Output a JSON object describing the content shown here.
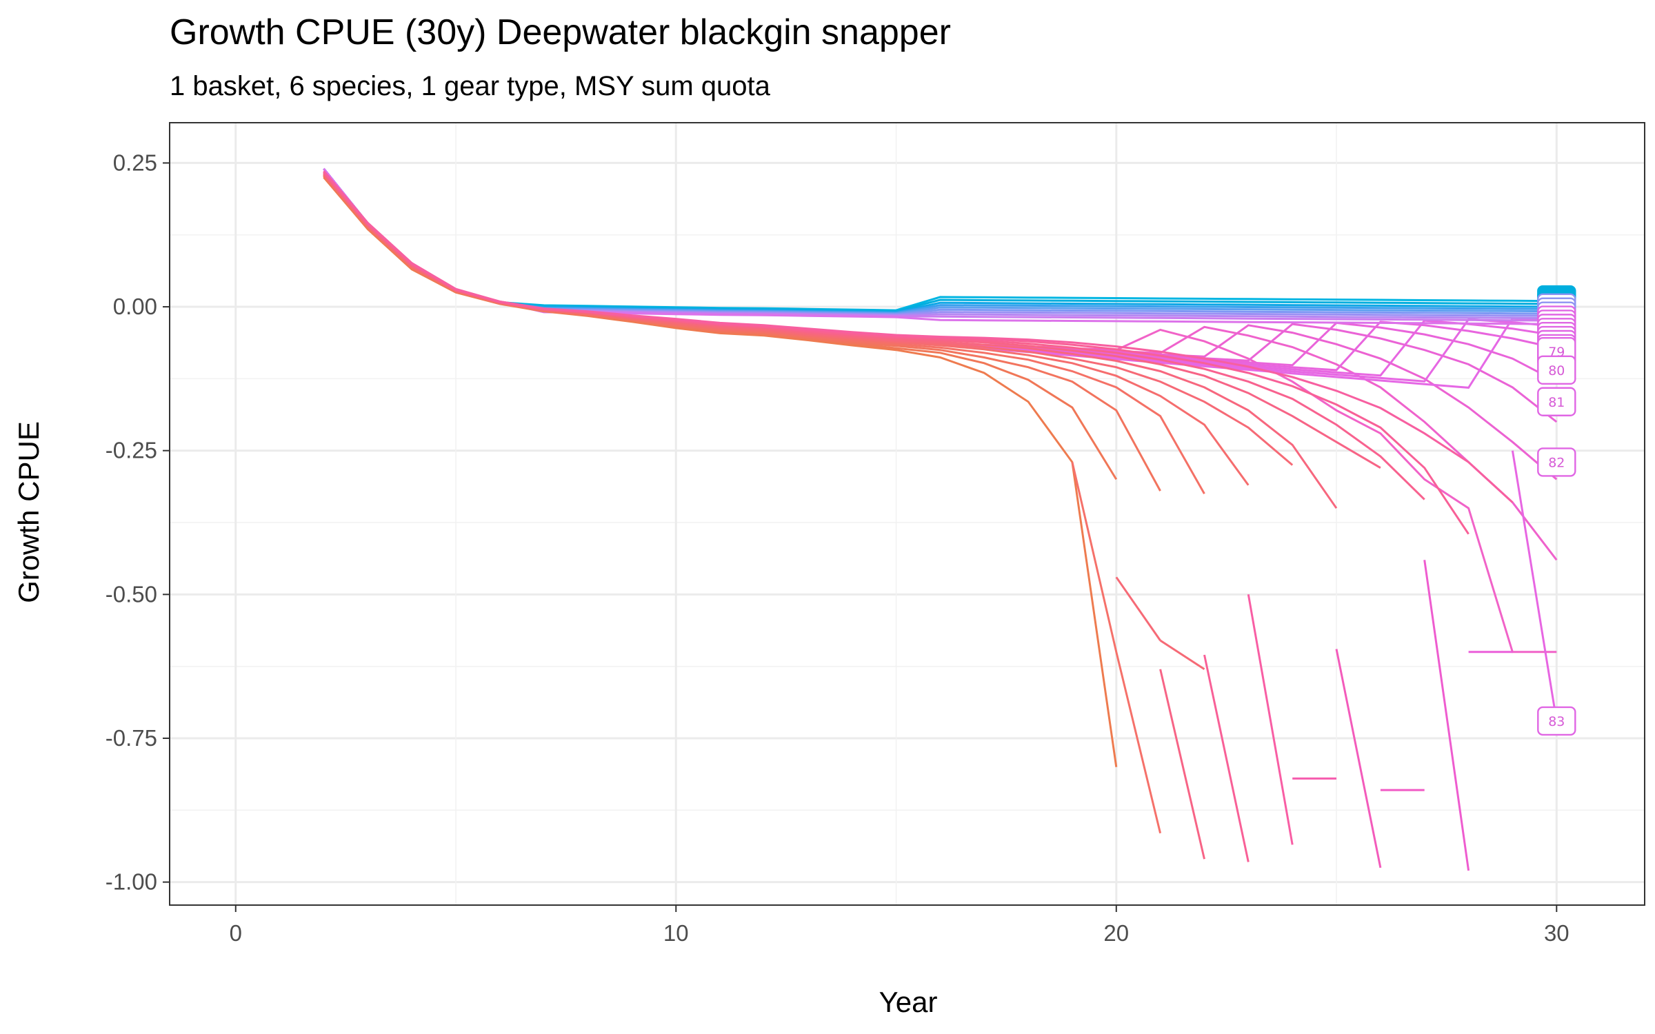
{
  "chart_data": {
    "type": "line",
    "title": "Growth CPUE (30y) Deepwater blackgin snapper",
    "subtitle": "1 basket, 6 species, 1 gear type, MSY sum quota",
    "xlabel": "Year",
    "ylabel": "Growth CPUE",
    "xlim": [
      -1.5,
      32
    ],
    "ylim": [
      -1.04,
      0.32
    ],
    "x_ticks": [
      0,
      10,
      20,
      30
    ],
    "x_tick_labels": [
      "0",
      "10",
      "20",
      "30"
    ],
    "y_ticks": [
      0.25,
      0.0,
      -0.25,
      -0.5,
      -0.75,
      -1.0
    ],
    "y_tick_labels": [
      "0.25",
      "0.00",
      "-0.25",
      "-0.50",
      "-0.75",
      "-1.00"
    ],
    "grid": true,
    "legend": "none",
    "colors": {
      "early_failure": "#ee7b4f",
      "late_failure": "#e868e6",
      "survivor": "#00aede",
      "survivor_2": "#5c9ff0"
    },
    "base_curve": {
      "x": [
        2,
        3,
        4,
        5,
        6,
        7,
        8,
        9,
        10,
        11,
        12,
        13,
        14,
        15
      ],
      "y": [
        0.24,
        0.145,
        0.075,
        0.03,
        0.008,
        -0.003,
        -0.01,
        -0.017,
        -0.025,
        -0.033,
        -0.038,
        -0.045,
        -0.052,
        -0.06
      ]
    },
    "series": [
      {
        "x": [
          2,
          3,
          4,
          5,
          6,
          7,
          8,
          9,
          10,
          11,
          12,
          13,
          14,
          15,
          16,
          17,
          18,
          19,
          20
        ],
        "y": [
          0.225,
          0.135,
          0.065,
          0.025,
          0.005,
          -0.008,
          -0.016,
          -0.026,
          -0.037,
          -0.046,
          -0.05,
          -0.058,
          -0.067,
          -0.075,
          -0.088,
          -0.115,
          -0.165,
          -0.27,
          -0.8
        ],
        "color": "#ee7b4f"
      },
      {
        "x": [
          2,
          3,
          4,
          5,
          6,
          7,
          8,
          9,
          10,
          11,
          12,
          13,
          14,
          15,
          16,
          17,
          18,
          19,
          20
        ],
        "y": [
          0.227,
          0.137,
          0.067,
          0.026,
          0.006,
          -0.007,
          -0.015,
          -0.024,
          -0.035,
          -0.044,
          -0.048,
          -0.056,
          -0.064,
          -0.072,
          -0.08,
          -0.098,
          -0.127,
          -0.175,
          -0.3
        ],
        "color": "#f07757"
      },
      {
        "x": [
          2,
          3,
          4,
          5,
          6,
          7,
          8,
          9,
          10,
          11,
          12,
          13,
          14,
          15,
          16,
          17,
          18,
          19,
          20,
          21
        ],
        "y": [
          0.228,
          0.138,
          0.068,
          0.027,
          0.006,
          -0.007,
          -0.014,
          -0.023,
          -0.033,
          -0.042,
          -0.046,
          -0.054,
          -0.062,
          -0.068,
          -0.075,
          -0.088,
          -0.105,
          -0.13,
          -0.18,
          -0.32
        ],
        "color": "#f2745e"
      },
      {
        "x": [
          2,
          3,
          4,
          5,
          6,
          7,
          8,
          9,
          10,
          11,
          12,
          13,
          14,
          15,
          16,
          17,
          18,
          19,
          20,
          21,
          22
        ],
        "y": [
          0.229,
          0.139,
          0.069,
          0.027,
          0.006,
          -0.006,
          -0.013,
          -0.022,
          -0.032,
          -0.04,
          -0.044,
          -0.052,
          -0.059,
          -0.065,
          -0.071,
          -0.08,
          -0.092,
          -0.112,
          -0.14,
          -0.19,
          -0.325
        ],
        "color": "#f47166"
      },
      {
        "x": [
          2,
          3,
          4,
          5,
          6,
          7,
          8,
          9,
          10,
          11,
          12,
          13,
          14,
          15,
          16,
          17,
          18,
          19,
          20,
          21,
          22,
          23
        ],
        "y": [
          0.23,
          0.14,
          0.07,
          0.028,
          0.007,
          -0.006,
          -0.012,
          -0.021,
          -0.03,
          -0.038,
          -0.042,
          -0.05,
          -0.056,
          -0.062,
          -0.067,
          -0.074,
          -0.084,
          -0.098,
          -0.12,
          -0.155,
          -0.205,
          -0.31
        ],
        "color": "#f56d6e"
      },
      {
        "x": [
          2,
          3,
          4,
          5,
          6,
          7,
          8,
          9,
          10,
          11,
          12,
          13,
          14,
          15,
          16,
          17,
          18,
          19,
          20,
          21,
          22,
          23,
          24
        ],
        "y": [
          0.231,
          0.141,
          0.071,
          0.028,
          0.007,
          -0.005,
          -0.011,
          -0.02,
          -0.028,
          -0.036,
          -0.04,
          -0.048,
          -0.054,
          -0.06,
          -0.064,
          -0.07,
          -0.078,
          -0.09,
          -0.105,
          -0.13,
          -0.165,
          -0.21,
          -0.275
        ],
        "color": "#f66a76"
      },
      {
        "x": [
          2,
          3,
          4,
          5,
          6,
          7,
          8,
          9,
          10,
          11,
          12,
          13,
          14,
          15,
          16,
          17,
          18,
          19,
          20,
          21,
          22,
          23,
          24,
          25
        ],
        "y": [
          0.232,
          0.142,
          0.072,
          0.029,
          0.008,
          -0.005,
          -0.01,
          -0.019,
          -0.026,
          -0.034,
          -0.038,
          -0.046,
          -0.052,
          -0.058,
          -0.061,
          -0.066,
          -0.072,
          -0.082,
          -0.094,
          -0.112,
          -0.14,
          -0.18,
          -0.24,
          -0.35
        ],
        "color": "#f7677e"
      },
      {
        "x": [
          2,
          3,
          4,
          5,
          6,
          7,
          8,
          9,
          10,
          11,
          12,
          13,
          14,
          15,
          16,
          17,
          18,
          19,
          20,
          21,
          22,
          23,
          24,
          25,
          26
        ],
        "y": [
          0.233,
          0.143,
          0.073,
          0.029,
          0.008,
          -0.004,
          -0.01,
          -0.018,
          -0.025,
          -0.032,
          -0.036,
          -0.044,
          -0.05,
          -0.055,
          -0.058,
          -0.062,
          -0.068,
          -0.076,
          -0.086,
          -0.1,
          -0.12,
          -0.15,
          -0.19,
          -0.235,
          -0.28
        ],
        "color": "#f76486"
      },
      {
        "x": [
          2,
          3,
          4,
          5,
          6,
          7,
          8,
          9,
          10,
          11,
          12,
          13,
          14,
          15,
          16,
          17,
          18,
          19,
          20,
          21,
          22,
          23,
          24,
          25,
          26,
          27
        ],
        "y": [
          0.234,
          0.144,
          0.074,
          0.03,
          0.008,
          -0.004,
          -0.009,
          -0.017,
          -0.024,
          -0.031,
          -0.035,
          -0.042,
          -0.048,
          -0.053,
          -0.056,
          -0.059,
          -0.064,
          -0.071,
          -0.08,
          -0.092,
          -0.108,
          -0.13,
          -0.16,
          -0.205,
          -0.26,
          -0.335
        ],
        "color": "#f8628f"
      },
      {
        "x": [
          2,
          3,
          4,
          5,
          6,
          7,
          8,
          9,
          10,
          11,
          12,
          13,
          14,
          15,
          16,
          17,
          18,
          19,
          20,
          21,
          22,
          23,
          24,
          25,
          26,
          27,
          28
        ],
        "y": [
          0.235,
          0.145,
          0.075,
          0.03,
          0.009,
          -0.003,
          -0.009,
          -0.016,
          -0.022,
          -0.03,
          -0.034,
          -0.04,
          -0.046,
          -0.051,
          -0.054,
          -0.056,
          -0.06,
          -0.066,
          -0.074,
          -0.085,
          -0.098,
          -0.115,
          -0.138,
          -0.17,
          -0.21,
          -0.28,
          -0.395
        ],
        "color": "#f86097"
      },
      {
        "x": [
          2,
          3,
          4,
          5,
          6,
          7,
          8,
          9,
          10,
          11,
          12,
          13,
          14,
          15,
          16,
          17,
          18,
          19,
          20,
          21,
          22,
          23,
          24,
          25,
          26,
          27,
          28,
          29
        ],
        "y": [
          0.236,
          0.146,
          0.076,
          0.031,
          0.009,
          -0.003,
          -0.008,
          -0.015,
          -0.021,
          -0.028,
          -0.032,
          -0.038,
          -0.044,
          -0.049,
          -0.052,
          -0.054,
          -0.057,
          -0.062,
          -0.069,
          -0.078,
          -0.09,
          -0.104,
          -0.122,
          -0.146,
          -0.176,
          -0.22,
          -0.27,
          -0.34
        ],
        "color": "#f75fa0"
      },
      {
        "x": [
          20,
          21
        ],
        "y": [
          -0.47,
          -0.58
        ],
        "color": "#f66a76"
      },
      {
        "x": [
          21,
          22
        ],
        "y": [
          -0.58,
          -0.63
        ],
        "color": "#f66a76"
      },
      {
        "x": [
          19,
          20,
          21
        ],
        "y": [
          -0.27,
          -0.6,
          -0.915
        ],
        "color": "#f5716a"
      },
      {
        "x": [
          21,
          22
        ],
        "y": [
          -0.63,
          -0.96
        ],
        "color": "#f76486"
      },
      {
        "x": [
          22,
          23
        ],
        "y": [
          -0.605,
          -0.965
        ],
        "color": "#f86097"
      },
      {
        "x": [
          23,
          24
        ],
        "y": [
          -0.5,
          -0.935
        ],
        "color": "#f85ea4"
      },
      {
        "x": [
          24,
          25
        ],
        "y": [
          -0.82,
          -0.82
        ],
        "color": "#f65cae"
      },
      {
        "x": [
          25,
          26
        ],
        "y": [
          -0.595,
          -0.975
        ],
        "color": "#f35bbb"
      },
      {
        "x": [
          26,
          27
        ],
        "y": [
          -0.84,
          -0.84
        ],
        "color": "#f15ac5"
      },
      {
        "x": [
          27,
          28
        ],
        "y": [
          -0.44,
          -0.98
        ],
        "color": "#ee5ccf"
      },
      {
        "x": [
          28,
          29
        ],
        "y": [
          -0.6,
          -0.6
        ],
        "color": "#eb5fd9"
      },
      {
        "x": [
          29,
          30
        ],
        "y": [
          -0.25,
          -0.72
        ],
        "color": "#e766e2"
      }
    ],
    "fan_to_30": [
      {
        "start": 21,
        "y": [
          -0.04,
          -0.06,
          -0.09,
          -0.13,
          -0.18,
          -0.22,
          -0.3,
          -0.35,
          -0.6,
          -0.6
        ]
      },
      {
        "start": 22,
        "y": [
          -0.035,
          -0.05,
          -0.07,
          -0.1,
          -0.14,
          -0.2,
          -0.27,
          -0.34,
          -0.44
        ]
      },
      {
        "start": 23,
        "y": [
          -0.032,
          -0.045,
          -0.065,
          -0.09,
          -0.125,
          -0.175,
          -0.235,
          -0.3
        ]
      },
      {
        "start": 24,
        "y": [
          -0.03,
          -0.04,
          -0.055,
          -0.075,
          -0.1,
          -0.14,
          -0.2
        ]
      },
      {
        "start": 25,
        "y": [
          -0.028,
          -0.036,
          -0.048,
          -0.065,
          -0.09,
          -0.13
        ]
      },
      {
        "start": 26,
        "y": [
          -0.026,
          -0.032,
          -0.042,
          -0.055,
          -0.072
        ]
      },
      {
        "start": 27,
        "y": [
          -0.024,
          -0.03,
          -0.038,
          -0.05
        ]
      },
      {
        "start": 28,
        "y": [
          -0.022,
          -0.027,
          -0.034
        ]
      },
      {
        "start": 29,
        "y": [
          -0.02,
          -0.024
        ]
      }
    ],
    "survivor_lines": [
      {
        "y_end": 0.01,
        "color": "#00b5e2"
      },
      {
        "y_end": 0.005,
        "color": "#00aede"
      },
      {
        "y_end": 0.0,
        "color": "#0ea7e6"
      },
      {
        "y_end": -0.004,
        "color": "#3aa0ee"
      },
      {
        "y_end": -0.008,
        "color": "#5c9ff0"
      },
      {
        "y_end": -0.012,
        "color": "#7d97f4"
      },
      {
        "y_end": -0.016,
        "color": "#9a8ff4"
      },
      {
        "y_end": -0.02,
        "color": "#b686f2"
      },
      {
        "y_end": -0.024,
        "color": "#cb7cef"
      },
      {
        "y_end": -0.03,
        "color": "#dc72ea"
      }
    ],
    "end_labels": [
      {
        "text": "79",
        "x": 30,
        "y": -0.078
      },
      {
        "text": "80",
        "x": 30,
        "y": -0.11
      },
      {
        "text": "81",
        "x": 30,
        "y": -0.165
      },
      {
        "text": "82",
        "x": 30,
        "y": -0.27
      },
      {
        "text": "83",
        "x": 30,
        "y": -0.72
      }
    ],
    "stacked_end_markers": {
      "x": 30,
      "y_top": 0.012,
      "y_bottom": -0.08,
      "count": 14
    }
  }
}
